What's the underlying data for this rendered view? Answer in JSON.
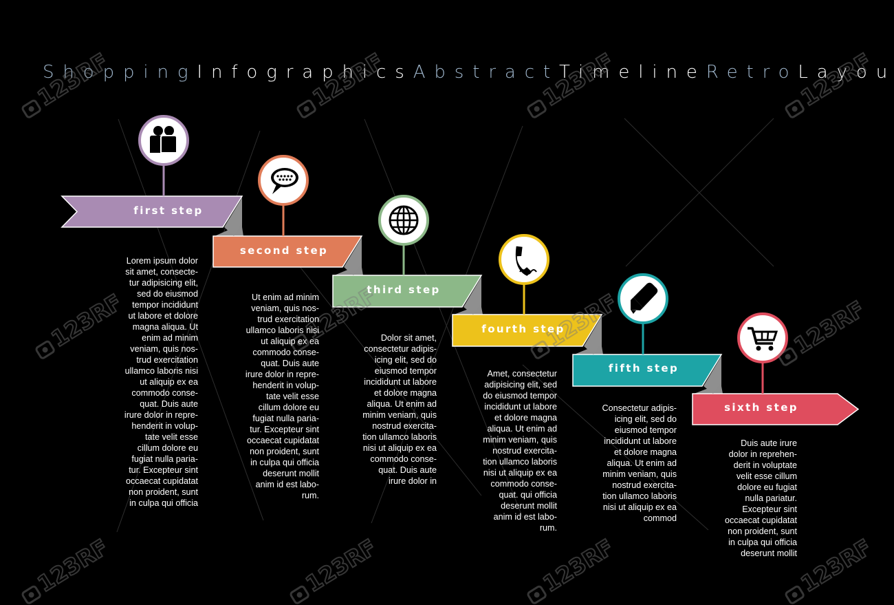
{
  "title_words": [
    {
      "text": "Shopping",
      "color": "#9fb6cc"
    },
    {
      "text": "Infographics",
      "color": "#ffffff"
    },
    {
      "text": "Abstract",
      "color": "#9fb6cc"
    },
    {
      "text": "Timeline",
      "color": "#ffffff"
    },
    {
      "text": "Retro",
      "color": "#9fb6cc"
    },
    {
      "text": "Layout",
      "color": "#ffffff"
    }
  ],
  "steps": [
    {
      "label": "first step",
      "color": "#a98bb3",
      "icon": "people-icon",
      "text": "Lorem ipsum dolor\nsit amet, consecte-\ntur adipisicing elit,\nsed do eiusmod\ntempor incididunt\nut labore et dolore\nmagna aliqua. Ut\nenim ad minim\nveniam, quis nos-\ntrud exercitation\nullamco laboris nisi\nut aliquip ex ea\ncommodo conse-\nquat. Duis aute\nirure dolor in repre-\nhenderit in volup-\ntate velit esse\ncillum dolore eu\nfugiat nulla paria-\ntur. Excepteur sint\noccaecat cupidatat\nnon proident, sunt\nin culpa qui officia"
    },
    {
      "label": "second step",
      "color": "#e07c58",
      "icon": "speech-bubble-icon",
      "text": "Ut enim ad minim\nveniam, quis nos-\ntrud exercitation\nullamco laboris nisi\nut aliquip ex ea\ncommodo conse-\nquat. Duis aute\nirure dolor in repre-\nhenderit in volup-\ntate velit esse\ncillum dolore eu\nfugiat nulla paria-\ntur. Excepteur sint\noccaecat cupidatat\nnon proident, sunt\nin culpa qui officia\ndeserunt mollit\nanim id est labo-\nrum."
    },
    {
      "label": "third step",
      "color": "#8cb888",
      "icon": "globe-icon",
      "text": "Dolor sit amet,\nconsectetur adipis-\nicing elit, sed do\neiusmod tempor\nincididunt ut labore\net dolore magna\naliqua. Ut enim ad\nminim veniam, quis\nnostrud exercita-\ntion ullamco laboris\nnisi ut aliquip ex ea\ncommodo conse-\nquat. Duis aute\nirure dolor in"
    },
    {
      "label": "fourth step",
      "color": "#edc21b",
      "icon": "phone-icon",
      "text": "Amet, consectetur\nadipisicing elit, sed\ndo eiusmod tempor\nincididunt ut labore\net dolore magna\naliqua. Ut enim ad\nminim veniam, quis\nnostrud exercita-\ntion ullamco laboris\nnisi ut aliquip ex ea\ncommodo conse-\nquat. qui officia\ndeserunt mollit\nanim id est labo-\nrum."
    },
    {
      "label": "fifth step",
      "color": "#1da4a6",
      "icon": "marker-icon",
      "text": "Consectetur adipis-\nicing elit, sed do\neiusmod tempor\nincididunt ut labore\net dolore magna\naliqua. Ut enim ad\nminim veniam, quis\nnostrud exercita-\ntion ullamco laboris\nnisi ut aliquip ex ea\ncommod"
    },
    {
      "label": "sixth step",
      "color": "#df4d5e",
      "icon": "shopping-cart-icon",
      "text": "Duis aute irure\ndolor in reprehen-\nderit in voluptate\nvelit esse cillum\ndolore eu fugiat\nnulla pariatur.\nExcepteur sint\noccaecat cupidatat\nnon proident, sunt\nin culpa qui officia\ndeserunt mollit"
    }
  ],
  "watermark": {
    "text": "123RF",
    "icon": "camera-icon"
  }
}
